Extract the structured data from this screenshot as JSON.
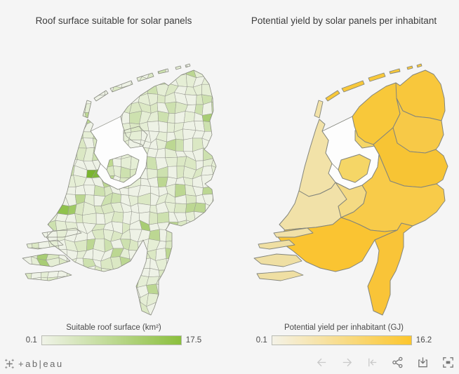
{
  "app": {
    "background": "#f5f5f5",
    "water_fill": "#fdfdfd"
  },
  "left_map": {
    "title": "Roof surface suitable for solar panels",
    "legend": {
      "title": "Suitable roof surface (km²)",
      "min": "0.1",
      "max": "17.5",
      "gradient_start": "#f0f3e8",
      "gradient_end": "#8bbf3d",
      "border_color": "#b9bbb3"
    },
    "fill_palette": [
      "#eef2e6",
      "#e5eed5",
      "#dbe8c4",
      "#cde1af",
      "#bcd792",
      "#a8cd74"
    ],
    "highlight_colors": [
      "#7fb83a",
      "#7ab42f",
      "#8fc24c",
      "#9fca64",
      "#a3cc66",
      "#bed98f"
    ],
    "border_stroke": "#9a9c93",
    "coast_stroke": "#87897f"
  },
  "right_map": {
    "title": "Potential yield by solar panels per inhabitant",
    "legend": {
      "title": "Potential yield per inhabitant (GJ)",
      "min": "0.1",
      "max": "16.2",
      "gradient_start": "#f4f2e7",
      "gradient_end": "#fcc62d",
      "border_color": "#b9bbb3"
    },
    "provinces": {
      "groningen": "#f8c73c",
      "friesland": "#f8c83a",
      "drenthe": "#f7c947",
      "overijssel": "#f7c434",
      "flevoland": "#f5d666",
      "gelderland": "#f8cb49",
      "utrecht": "#f4da83",
      "noord-holland": "#f2e2a8",
      "zuid-holland": "#f1e1a8",
      "zeeland": "#efdfa3",
      "noord-brabant": "#fac432",
      "limburg": "#f9c438"
    },
    "border_stroke": "#83857c"
  },
  "toolbar": {
    "logo_text": "+ab|eau",
    "logo_color": "#7c7c7c",
    "disabled_color": "#c9c9c9",
    "enabled_color": "#767676",
    "icons": [
      {
        "name": "undo-arrow",
        "enabled": false
      },
      {
        "name": "redo-arrow",
        "enabled": false
      },
      {
        "name": "revert-to-start",
        "enabled": false
      },
      {
        "name": "share",
        "enabled": true
      },
      {
        "name": "download",
        "enabled": true
      },
      {
        "name": "fullscreen",
        "enabled": true
      }
    ]
  },
  "chart_data": [
    {
      "type": "choropleth_map",
      "region": "Netherlands (municipalities)",
      "title": "Roof surface suitable for solar panels",
      "legend_label": "Suitable roof surface (km²)",
      "min": 0.1,
      "max": 17.5,
      "color_scale": [
        "#f0f3e8",
        "#8bbf3d"
      ],
      "notes": "Most municipalities shaded pale green (low values); darkest cells around Amsterdam/Haarlemmermeer and the Rotterdam/The Hague corridor."
    },
    {
      "type": "choropleth_map",
      "region": "Netherlands (provinces)",
      "title": "Potential yield by solar panels per inhabitant",
      "legend_label": "Potential yield per inhabitant (GJ)",
      "min": 0.1,
      "max": 16.2,
      "color_scale": [
        "#f4f2e7",
        "#fcc62d"
      ],
      "province_shading": {
        "high": [
          "friesland",
          "groningen",
          "drenthe",
          "overijssel",
          "gelderland",
          "noord-brabant",
          "limburg"
        ],
        "medium": [
          "flevoland",
          "utrecht"
        ],
        "low": [
          "noord-holland",
          "zuid-holland",
          "zeeland"
        ]
      }
    }
  ]
}
